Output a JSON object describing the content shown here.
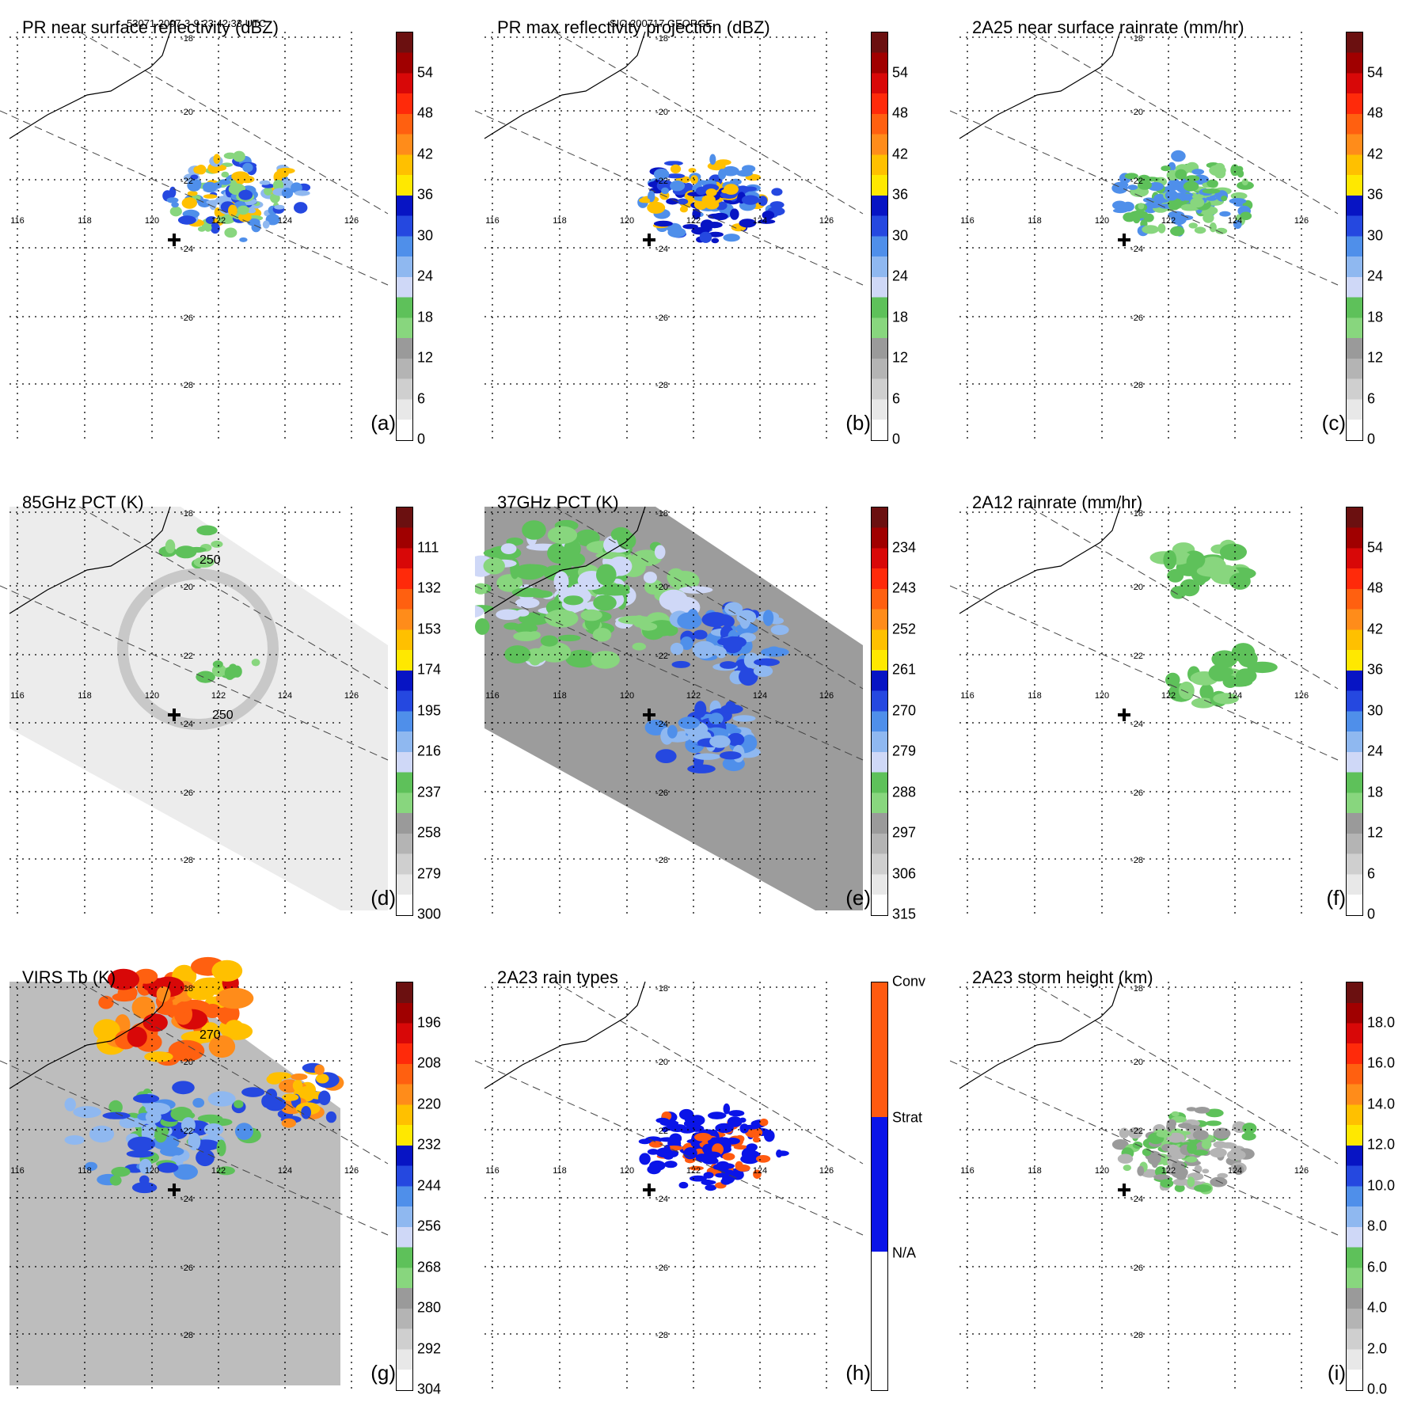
{
  "header": {
    "orbit_time": "53071 2007-3-9 23:42:33 UTC",
    "storm": "SIO 200717 GEORGE"
  },
  "lon_labels": [
    "116",
    "118",
    "120",
    "122",
    "124",
    "126"
  ],
  "lat_labels": [
    "-18",
    "-20",
    "-22",
    "-24",
    "-26",
    "-28"
  ],
  "chart_data": [
    {
      "id": "a",
      "type": "heatmap",
      "title": "PR near surface reflectivity (dBZ)",
      "label": "(a)",
      "colorbar": {
        "range": [
          0,
          60
        ],
        "ticks": [
          "54",
          "48",
          "42",
          "36",
          "30",
          "24",
          "18",
          "12",
          "6",
          "0"
        ]
      },
      "swath": "PR"
    },
    {
      "id": "b",
      "type": "heatmap",
      "title": "PR max reflectivity projection (dBZ)",
      "label": "(b)",
      "colorbar": {
        "range": [
          0,
          60
        ],
        "ticks": [
          "54",
          "48",
          "42",
          "36",
          "30",
          "24",
          "18",
          "12",
          "6",
          "0"
        ]
      },
      "swath": "PR"
    },
    {
      "id": "c",
      "type": "heatmap",
      "title": "2A25 near surface rainrate (mm/hr)",
      "label": "(c)",
      "colorbar": {
        "range": [
          0,
          60
        ],
        "ticks": [
          "54",
          "48",
          "42",
          "36",
          "30",
          "24",
          "18",
          "12",
          "6",
          "0"
        ]
      },
      "swath": "PR"
    },
    {
      "id": "d",
      "type": "heatmap",
      "title": "85GHz PCT (K)",
      "label": "(d)",
      "colorbar": {
        "range": [
          90,
          300
        ],
        "ticks": [
          "111",
          "132",
          "153",
          "174",
          "195",
          "216",
          "237",
          "258",
          "279",
          "300"
        ]
      },
      "contour_labels": [
        "250",
        "250"
      ],
      "swath": "TMI"
    },
    {
      "id": "e",
      "type": "heatmap",
      "title": "37GHz PCT (K)",
      "label": "(e)",
      "colorbar": {
        "range": [
          225,
          315
        ],
        "ticks": [
          "234",
          "243",
          "252",
          "261",
          "270",
          "279",
          "288",
          "297",
          "306",
          "315"
        ]
      },
      "swath": "TMI"
    },
    {
      "id": "f",
      "type": "heatmap",
      "title": "2A12 rainrate (mm/hr)",
      "label": "(f)",
      "colorbar": {
        "range": [
          0,
          60
        ],
        "ticks": [
          "54",
          "48",
          "42",
          "36",
          "30",
          "24",
          "18",
          "12",
          "6",
          "0"
        ]
      },
      "swath": "TMI"
    },
    {
      "id": "g",
      "type": "heatmap",
      "title": "VIRS Tb (K)",
      "label": "(g)",
      "colorbar": {
        "range": [
          184,
          304
        ],
        "ticks": [
          "196",
          "208",
          "220",
          "232",
          "244",
          "256",
          "268",
          "280",
          "292",
          "304"
        ]
      },
      "contour_labels": [
        "270"
      ],
      "swath": "VIRS"
    },
    {
      "id": "h",
      "type": "heatmap",
      "title": "2A23 rain types",
      "label": "(h)",
      "colorbar": {
        "categories": [
          "Conv",
          "Strat",
          "N/A"
        ]
      },
      "swath": "PR"
    },
    {
      "id": "i",
      "type": "heatmap",
      "title": "2A23 storm height (km)",
      "label": "(i)",
      "colorbar": {
        "range": [
          0,
          20
        ],
        "ticks": [
          "18.0",
          "16.0",
          "14.0",
          "12.0",
          "10.0",
          "8.0",
          "6.0",
          "4.0",
          "2.0",
          "0.0"
        ]
      },
      "swath": "PR"
    }
  ],
  "colors": {
    "scale_bands": [
      "#ffffff",
      "#e8e8e8",
      "#cfcfcf",
      "#b4b4b4",
      "#9a9a9a",
      "#88d67e",
      "#5ec15a",
      "#cfd8f7",
      "#8fb8f0",
      "#4f8fea",
      "#2548e0",
      "#0714c4",
      "#ffe800",
      "#ffc000",
      "#ff8c1a",
      "#ff6010",
      "#ff2a0a",
      "#d80808",
      "#a00000",
      "#6b1010"
    ],
    "rain_types": [
      "#ff5a10",
      "#0a14e8",
      "#ffffff"
    ]
  }
}
